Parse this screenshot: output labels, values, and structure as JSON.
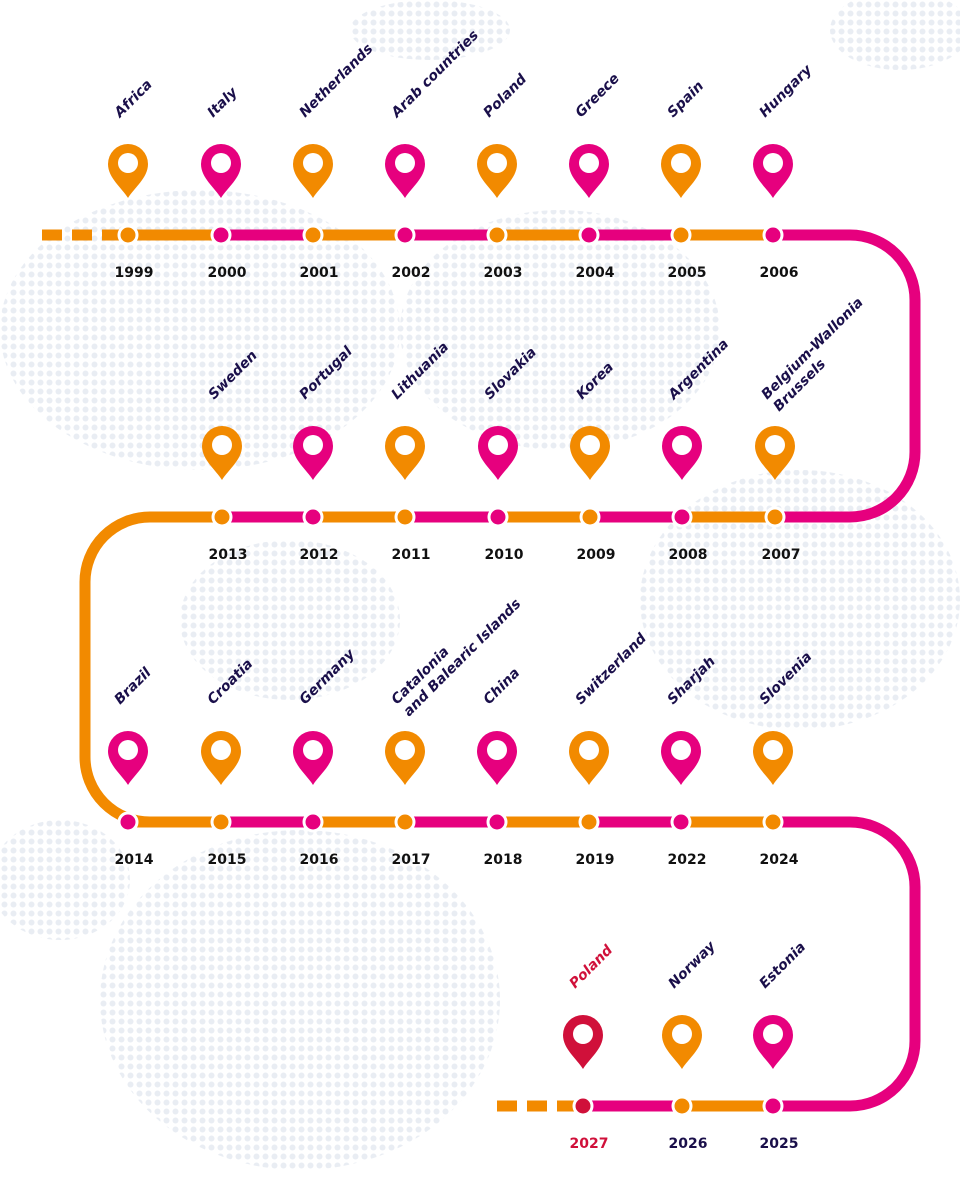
{
  "timeline": {
    "rows": [
      {
        "events": [
          {
            "lines": [
              "Africa"
            ],
            "year": "1999",
            "color": "#f28a00"
          },
          {
            "lines": [
              "Italy"
            ],
            "year": "2000",
            "color": "#e6007e"
          },
          {
            "lines": [
              "Netherlands"
            ],
            "year": "2001",
            "color": "#f28a00"
          },
          {
            "lines": [
              "Arab countries"
            ],
            "year": "2002",
            "color": "#e6007e"
          },
          {
            "lines": [
              "Poland"
            ],
            "year": "2003",
            "color": "#f28a00"
          },
          {
            "lines": [
              "Greece"
            ],
            "year": "2004",
            "color": "#e6007e"
          },
          {
            "lines": [
              "Spain"
            ],
            "year": "2005",
            "color": "#f28a00"
          },
          {
            "lines": [
              "Hungary"
            ],
            "year": "2006",
            "color": "#e6007e"
          }
        ]
      },
      {
        "events": [
          {
            "lines": [
              "Belgium-Wallonia",
              "Brussels"
            ],
            "year": "2007",
            "color": "#f28a00"
          },
          {
            "lines": [
              "Argentina"
            ],
            "year": "2008",
            "color": "#e6007e"
          },
          {
            "lines": [
              "Korea"
            ],
            "year": "2009",
            "color": "#f28a00"
          },
          {
            "lines": [
              "Slovakia"
            ],
            "year": "2010",
            "color": "#e6007e"
          },
          {
            "lines": [
              "Lithuania"
            ],
            "year": "2011",
            "color": "#f28a00"
          },
          {
            "lines": [
              "Portugal"
            ],
            "year": "2012",
            "color": "#e6007e"
          },
          {
            "lines": [
              "Sweden"
            ],
            "year": "2013",
            "color": "#f28a00"
          }
        ]
      },
      {
        "events": [
          {
            "lines": [
              "Brazil"
            ],
            "year": "2014",
            "color": "#e6007e"
          },
          {
            "lines": [
              "Croatia"
            ],
            "year": "2015",
            "color": "#f28a00"
          },
          {
            "lines": [
              "Germany"
            ],
            "year": "2016",
            "color": "#e6007e"
          },
          {
            "lines": [
              "Catalonia",
              "and Balearic Islands"
            ],
            "year": "2017",
            "color": "#f28a00"
          },
          {
            "lines": [
              "China"
            ],
            "year": "2018",
            "color": "#e6007e"
          },
          {
            "lines": [
              "Switzerland"
            ],
            "year": "2019",
            "color": "#f28a00"
          },
          {
            "lines": [
              "Sharjah"
            ],
            "year": "2022",
            "color": "#e6007e"
          },
          {
            "lines": [
              "Slovenia"
            ],
            "year": "2024",
            "color": "#f28a00"
          }
        ]
      },
      {
        "events": [
          {
            "lines": [
              "Estonia"
            ],
            "year": "2025",
            "color": "#e6007e"
          },
          {
            "lines": [
              "Norway"
            ],
            "year": "2026",
            "color": "#f28a00"
          },
          {
            "lines": [
              "Poland"
            ],
            "year": "2027",
            "color": "#d0103a"
          }
        ]
      }
    ]
  }
}
